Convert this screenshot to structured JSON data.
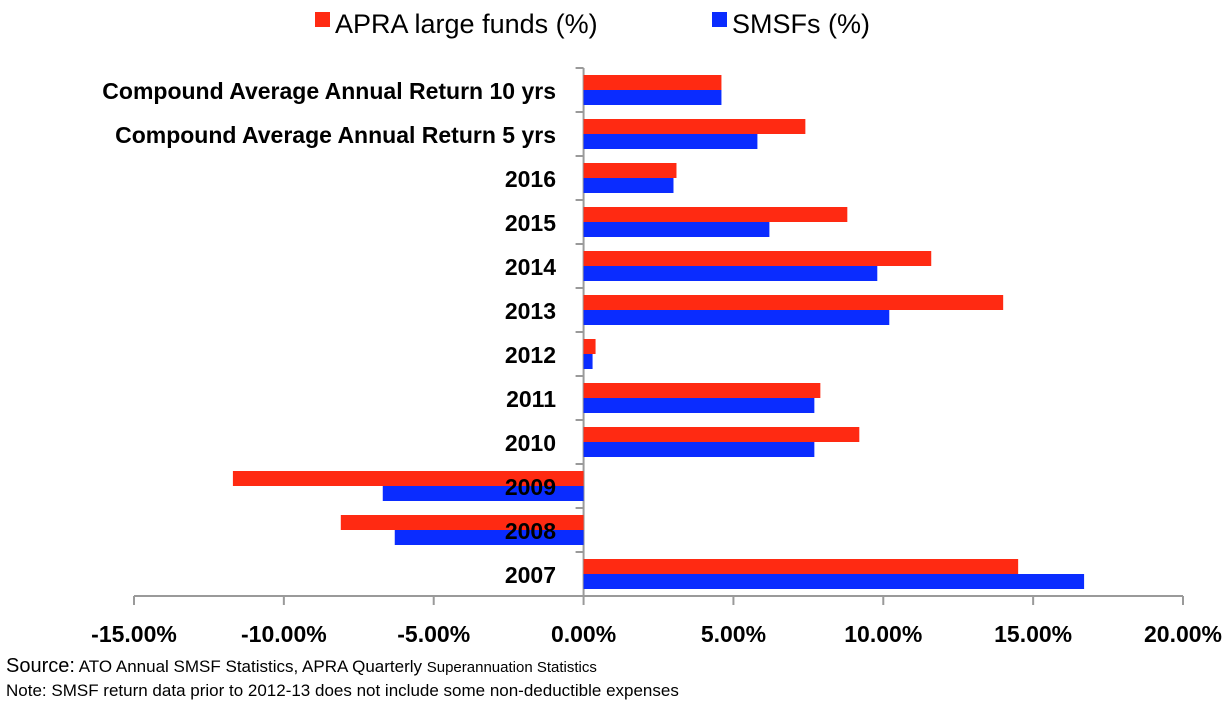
{
  "chart_data": {
    "type": "bar",
    "orientation": "horizontal",
    "title": "",
    "xlabel": "",
    "ylabel": "",
    "xlim": [
      -15,
      20
    ],
    "x_ticks": [
      -15,
      -10,
      -5,
      0,
      5,
      10,
      15,
      20
    ],
    "x_tick_labels": [
      "-15.00%",
      "-10.00%",
      "-5.00%",
      "0.00%",
      "5.00%",
      "10.00%",
      "15.00%",
      "20.00%"
    ],
    "grid": false,
    "legend_position": "top",
    "categories": [
      "Compound Average Annual Return 10 yrs",
      "Compound Average Annual Return 5 yrs",
      "2016",
      "2015",
      "2014",
      "2013",
      "2012",
      "2011",
      "2010",
      "2009",
      "2008",
      "2007"
    ],
    "series": [
      {
        "name": "APRA large funds (%)",
        "color": "#ff2a12",
        "values": [
          4.6,
          7.4,
          3.1,
          8.8,
          11.6,
          14.0,
          0.4,
          7.9,
          9.2,
          -11.7,
          -8.1,
          14.5
        ]
      },
      {
        "name": "SMSFs (%)",
        "color": "#0a2cff",
        "values": [
          4.6,
          5.8,
          3.0,
          6.2,
          9.8,
          10.2,
          0.3,
          7.7,
          7.7,
          -6.7,
          -6.3,
          16.7
        ]
      }
    ]
  },
  "footer": {
    "source_lead": "Source:",
    "source_main": " ATO Annual SMSF Statistics, APRA Quarterly ",
    "source_small": "Superannuation Statistics",
    "note": "Note: SMSF return  data prior to 2012-13 does not include some non-deductible expenses"
  }
}
